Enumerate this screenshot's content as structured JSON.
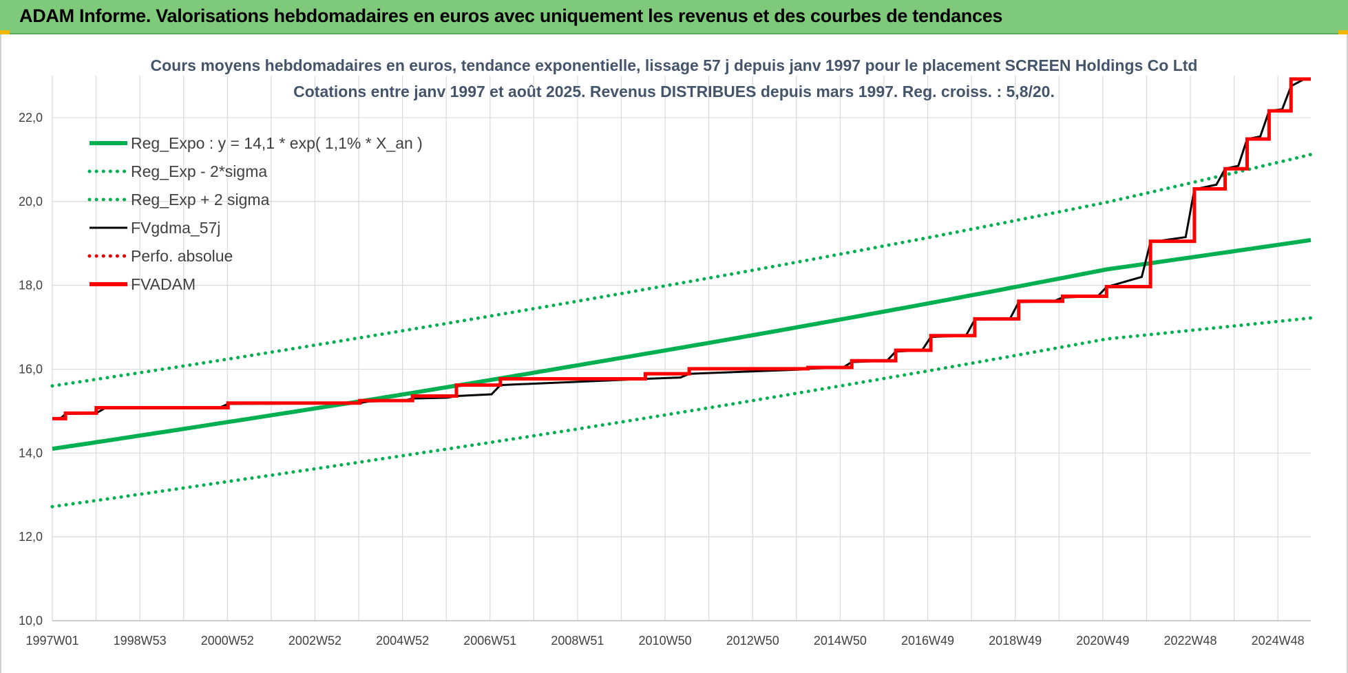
{
  "banner": {
    "title": "ADAM Informe. Valorisations hebdomadaires en euros avec uniquement les revenus et des courbes de tendances"
  },
  "colors": {
    "banner_bg": "#7ec97a",
    "regression": "#00b050",
    "fvgdma": "#000000",
    "perfo": "#e00000",
    "fvadam": "#ff0000",
    "grid": "#d9d9d9"
  },
  "chart_data": {
    "type": "line",
    "title": "Cours moyens hebdomadaires en euros, tendance exponentielle, lissage 57 j depuis janv 1997 pour le placement SCREEN Holdings Co Ltd",
    "subtitle": "Cotations entre janv 1997 et août 2025. Revenus DISTRIBUES depuis mars 1997. Reg. croiss. : 5,8/20.",
    "xlabel": "",
    "ylabel": "",
    "ylim": [
      10,
      23
    ],
    "yticks": [
      "10,0",
      "12,0",
      "14,0",
      "16,0",
      "18,0",
      "20,0",
      "22,0"
    ],
    "xlim": [
      1997.0,
      2025.65
    ],
    "xticks": [
      "1997W01",
      "1998W53",
      "2000W52",
      "2002W52",
      "2004W52",
      "2006W51",
      "2008W51",
      "2010W50",
      "2012W50",
      "2014W50",
      "2016W49",
      "2018W49",
      "2020W49",
      "2022W48",
      "2024W48"
    ],
    "grid": true,
    "legend_position": "top-left",
    "series": [
      {
        "name": "Reg_Expo : y = 14,1 * exp( 1,1% *  X_an )",
        "style": "solid",
        "color": "#00b050",
        "x": [
          1997.0,
          2001.0,
          2005.0,
          2009.0,
          2013.0,
          2017.0,
          2021.0,
          2025.65
        ],
        "values": [
          14.1,
          14.74,
          15.4,
          16.1,
          16.82,
          17.58,
          18.38,
          19.08
        ]
      },
      {
        "name": "Reg_Exp - 2*sigma",
        "style": "dotted",
        "color": "#00b050",
        "x": [
          1997.0,
          2001.0,
          2005.0,
          2009.0,
          2013.0,
          2017.0,
          2021.0,
          2025.65
        ],
        "values": [
          12.72,
          13.32,
          13.94,
          14.58,
          15.26,
          15.97,
          16.72,
          17.22
        ]
      },
      {
        "name": "Reg_Exp + 2 sigma",
        "style": "dotted",
        "color": "#00b050",
        "x": [
          1997.0,
          2001.0,
          2005.0,
          2009.0,
          2013.0,
          2017.0,
          2021.0,
          2025.65
        ],
        "values": [
          15.6,
          16.24,
          16.92,
          17.63,
          18.37,
          19.15,
          19.98,
          21.12
        ]
      },
      {
        "name": "FVgdma_57j",
        "style": "solid-thin",
        "color": "#000000",
        "x": [
          1997.0,
          1997.2,
          1997.3,
          1998.0,
          1998.2,
          2000.8,
          2001.0,
          2004.0,
          2004.2,
          2005.0,
          2005.2,
          2006.0,
          2006.2,
          2007.0,
          2007.2,
          2010.3,
          2010.5,
          2011.3,
          2011.5,
          2014.0,
          2014.2,
          2015.0,
          2015.2,
          2016.0,
          2016.2,
          2016.8,
          2017.0,
          2017.8,
          2018.0,
          2018.8,
          2019.0,
          2019.8,
          2020.0,
          2020.8,
          2021.0,
          2021.8,
          2022.0,
          2022.8,
          2023.0,
          2023.5,
          2023.7,
          2024.0,
          2024.2,
          2024.5,
          2024.7,
          2025.0,
          2025.2,
          2025.5
        ],
        "values": [
          14.82,
          14.84,
          14.93,
          14.95,
          15.07,
          15.08,
          15.17,
          15.19,
          15.23,
          15.25,
          15.3,
          15.32,
          15.36,
          15.4,
          15.62,
          15.76,
          15.77,
          15.8,
          15.89,
          15.99,
          16.01,
          16.04,
          16.17,
          16.2,
          16.42,
          16.45,
          16.77,
          16.8,
          17.18,
          17.2,
          17.6,
          17.62,
          17.71,
          17.74,
          17.96,
          18.2,
          19.03,
          19.15,
          20.29,
          20.4,
          20.78,
          20.85,
          21.49,
          21.55,
          22.16,
          22.2,
          22.75,
          22.92
        ]
      },
      {
        "name": "Perfo. absolue",
        "style": "dotted",
        "color": "#e00000",
        "x": [],
        "values": []
      },
      {
        "name": "FVADAM",
        "style": "step",
        "color": "#ff0000",
        "x": [
          1997.0,
          1997.3,
          1998.0,
          2001.0,
          2004.0,
          2005.2,
          2006.2,
          2007.2,
          2010.5,
          2011.5,
          2014.2,
          2015.2,
          2016.2,
          2017.0,
          2018.0,
          2019.0,
          2020.0,
          2021.0,
          2022.0,
          2023.0,
          2023.7,
          2024.2,
          2024.7,
          2025.2,
          2025.65
        ],
        "values": [
          14.82,
          14.95,
          15.08,
          15.19,
          15.25,
          15.36,
          15.62,
          15.77,
          15.89,
          16.01,
          16.04,
          16.2,
          16.45,
          16.8,
          17.2,
          17.62,
          17.74,
          17.97,
          19.05,
          20.3,
          20.78,
          21.49,
          22.16,
          22.92,
          22.92
        ]
      }
    ]
  }
}
